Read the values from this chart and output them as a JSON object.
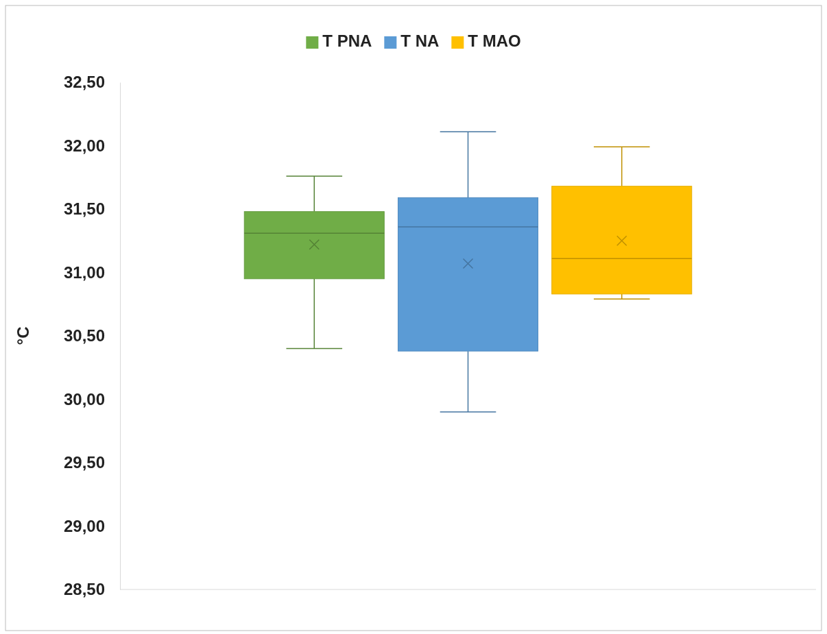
{
  "chart_data": {
    "type": "box",
    "ylabel": "°C",
    "categories": [
      null
    ],
    "ylim": [
      28.5,
      32.5
    ],
    "yticks": [
      {
        "value": 28.5,
        "label": "28,50"
      },
      {
        "value": 29,
        "label": "29,00"
      },
      {
        "value": 29.5,
        "label": "29,50"
      },
      {
        "value": 30,
        "label": "30,00"
      },
      {
        "value": 30.5,
        "label": "30,50"
      },
      {
        "value": 31,
        "label": "31,00"
      },
      {
        "value": 31.5,
        "label": "31,50"
      },
      {
        "value": 32,
        "label": "32,00"
      },
      {
        "value": 32.5,
        "label": "32,50"
      }
    ],
    "legend": "top",
    "grid": false,
    "series": [
      {
        "name": "T PNA",
        "color": "#70ad47",
        "boxes": [
          {
            "low": 30.4,
            "q1": 30.95,
            "median": 31.31,
            "q3": 31.48,
            "high": 31.76,
            "mean": 31.22
          }
        ]
      },
      {
        "name": "T NA",
        "color": "#5b9bd5",
        "boxes": [
          {
            "low": 29.9,
            "q1": 30.38,
            "median": 31.36,
            "q3": 31.59,
            "high": 32.11,
            "mean": 31.07
          }
        ]
      },
      {
        "name": "T MAO",
        "color": "#ffc000",
        "boxes": [
          {
            "low": 30.79,
            "q1": 30.83,
            "median": 31.11,
            "q3": 31.68,
            "high": 31.99,
            "mean": 31.25
          }
        ]
      }
    ]
  }
}
